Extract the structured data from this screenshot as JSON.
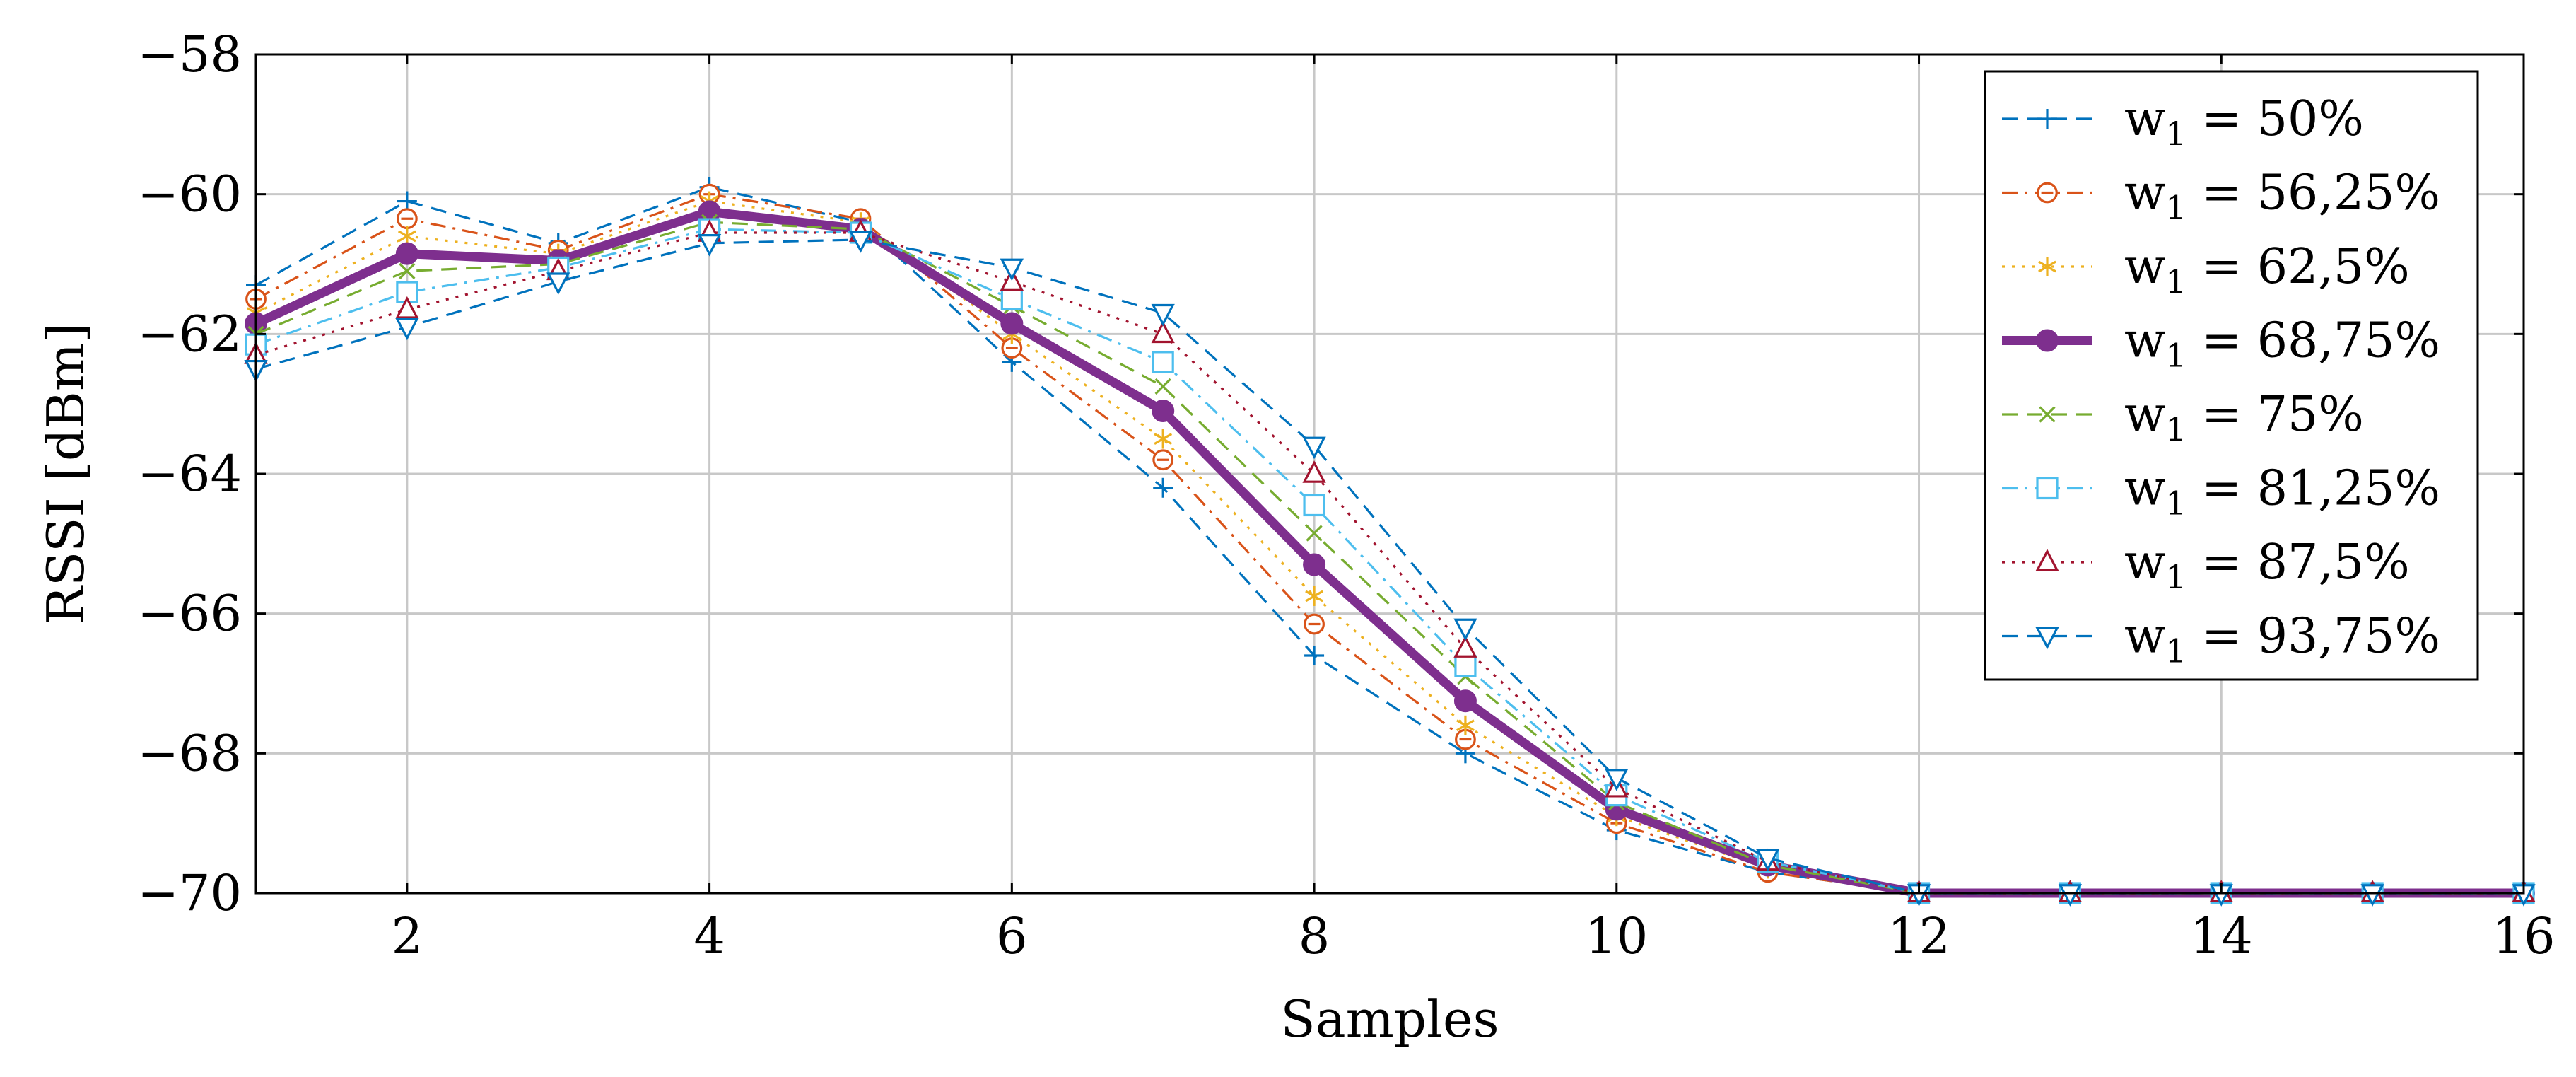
{
  "chart_data": {
    "type": "line",
    "title": "",
    "xlabel": "Samples",
    "ylabel": "RSSI [dBm]",
    "xlim": [
      1,
      16
    ],
    "ylim": [
      -70,
      -58
    ],
    "xticks": [
      2,
      4,
      6,
      8,
      10,
      12,
      14,
      16
    ],
    "yticks": [
      -70,
      -68,
      -66,
      -64,
      -62,
      -60,
      -58
    ],
    "xtick_labels": [
      "2",
      "4",
      "6",
      "8",
      "10",
      "12",
      "14",
      "16"
    ],
    "ytick_labels": [
      "−70",
      "−68",
      "−66",
      "−64",
      "−62",
      "−60",
      "−58"
    ],
    "grid": true,
    "legend_position": "top-right",
    "x": [
      1,
      2,
      3,
      4,
      5,
      6,
      7,
      8,
      9,
      10,
      11,
      12,
      13,
      14,
      15,
      16
    ],
    "series": [
      {
        "name": "w1 = 50%",
        "legend_prefix": "w",
        "legend_sub": "1",
        "legend_suffix": " = 50%",
        "color": "#0072BD",
        "dash": "dashed",
        "marker": "plus",
        "width": "normal",
        "values": [
          -61.3,
          -60.1,
          -60.7,
          -59.9,
          -60.4,
          -62.4,
          -64.2,
          -66.6,
          -68.0,
          -69.1,
          -69.7,
          -70,
          -70,
          -70,
          -70,
          -70
        ]
      },
      {
        "name": "w1 = 56,25%",
        "legend_prefix": "w",
        "legend_sub": "1",
        "legend_suffix": " = 56,25%",
        "color": "#D95319",
        "dash": "dashdot",
        "marker": "circle",
        "width": "normal",
        "values": [
          -61.5,
          -60.35,
          -60.8,
          -60.0,
          -60.35,
          -62.2,
          -63.8,
          -66.15,
          -67.8,
          -69.0,
          -69.7,
          -70,
          -70,
          -70,
          -70,
          -70
        ]
      },
      {
        "name": "w1 = 62,5%",
        "legend_prefix": "w",
        "legend_sub": "1",
        "legend_suffix": " = 62,5%",
        "color": "#EDB120",
        "dash": "dotted",
        "marker": "asterisk",
        "width": "normal",
        "values": [
          -61.7,
          -60.6,
          -60.85,
          -60.1,
          -60.4,
          -62.0,
          -63.5,
          -65.75,
          -67.6,
          -68.9,
          -69.65,
          -70,
          -70,
          -70,
          -70,
          -70
        ]
      },
      {
        "name": "w1 = 68,75%",
        "legend_prefix": "w",
        "legend_sub": "1",
        "legend_suffix": " = 68,75%",
        "color": "#7E2F8E",
        "dash": "solid",
        "marker": "dot",
        "width": "thick",
        "values": [
          -61.85,
          -60.85,
          -60.95,
          -60.25,
          -60.5,
          -61.85,
          -63.1,
          -65.3,
          -67.25,
          -68.8,
          -69.6,
          -70,
          -70,
          -70,
          -70,
          -70
        ]
      },
      {
        "name": "w1 = 75%",
        "legend_prefix": "w",
        "legend_sub": "1",
        "legend_suffix": " = 75%",
        "color": "#77AC30",
        "dash": "dashed",
        "marker": "cross",
        "width": "normal",
        "values": [
          -62.0,
          -61.1,
          -61.0,
          -60.4,
          -60.5,
          -61.6,
          -62.75,
          -64.85,
          -66.9,
          -68.7,
          -69.6,
          -70,
          -70,
          -70,
          -70,
          -70
        ]
      },
      {
        "name": "w1 = 81,25%",
        "legend_prefix": "w",
        "legend_sub": "1",
        "legend_suffix": " = 81,25%",
        "color": "#4DBEEE",
        "dash": "dashdot",
        "marker": "square",
        "width": "normal",
        "values": [
          -62.15,
          -61.4,
          -61.05,
          -60.5,
          -60.55,
          -61.5,
          -62.4,
          -64.45,
          -66.75,
          -68.6,
          -69.55,
          -70,
          -70,
          -70,
          -70,
          -70
        ]
      },
      {
        "name": "w1 = 87,5%",
        "legend_prefix": "w",
        "legend_sub": "1",
        "legend_suffix": " = 87,5%",
        "color": "#A2142F",
        "dash": "dotted",
        "marker": "triangle",
        "width": "normal",
        "values": [
          -62.3,
          -61.65,
          -61.1,
          -60.55,
          -60.55,
          -61.25,
          -62.0,
          -64.0,
          -66.5,
          -68.5,
          -69.55,
          -70,
          -70,
          -70,
          -70,
          -70
        ]
      },
      {
        "name": "w1 = 93,75%",
        "legend_prefix": "w",
        "legend_sub": "1",
        "legend_suffix": " = 93,75%",
        "color": "#0072BD",
        "dash": "dashed",
        "marker": "triangle-down",
        "width": "normal",
        "values": [
          -62.5,
          -61.9,
          -61.25,
          -60.7,
          -60.65,
          -61.05,
          -61.7,
          -63.6,
          -66.2,
          -68.35,
          -69.5,
          -70,
          -70,
          -70,
          -70,
          -70
        ]
      }
    ]
  }
}
